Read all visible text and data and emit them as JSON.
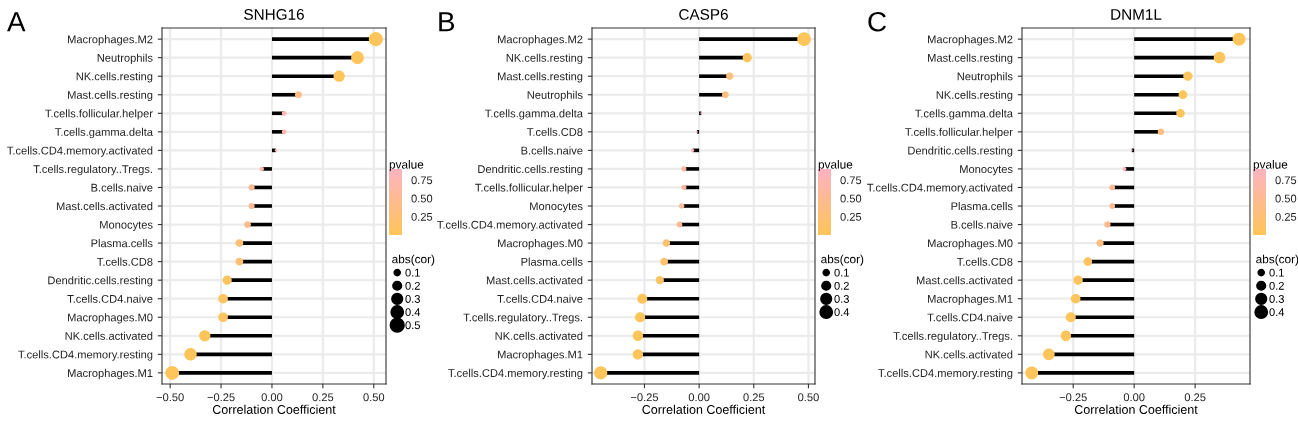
{
  "chart_data": [
    {
      "type": "lollipop",
      "title": "SNHG16",
      "xlabel": "Correlation Coefficient",
      "orientation": "horizontal",
      "annotations": [
        "A"
      ],
      "clabel": "pvalue",
      "legend_title": "abs(cor)",
      "grid": true,
      "categories": [
        "Macrophages.M2",
        "Neutrophils",
        "NK.cells.resting",
        "Mast.cells.resting",
        "T.cells.follicular.helper",
        "T.cells.gamma.delta",
        "T.cells.CD4.memory.activated",
        "T.cells.regulatory..Tregs.",
        "B.cells.naive",
        "Mast.cells.activated",
        "Monocytes",
        "Plasma.cells",
        "T.cells.CD8",
        "Dendritic.cells.resting",
        "T.cells.CD4.naive",
        "Macrophages.M0",
        "NK.cells.activated",
        "T.cells.CD4.memory.resting",
        "Macrophages.M1"
      ],
      "values": [
        0.51,
        0.42,
        0.33,
        0.13,
        0.06,
        0.06,
        0.02,
        -0.05,
        -0.1,
        -0.1,
        -0.12,
        -0.16,
        -0.16,
        -0.22,
        -0.24,
        -0.24,
        -0.33,
        -0.4,
        -0.49
      ],
      "sizes": [
        0.51,
        0.42,
        0.33,
        0.13,
        0.06,
        0.06,
        0.02,
        0.05,
        0.1,
        0.1,
        0.12,
        0.16,
        0.16,
        0.22,
        0.24,
        0.24,
        0.33,
        0.4,
        0.49
      ],
      "cvalues": [
        0.0,
        0.0,
        0.0,
        0.4,
        0.7,
        0.7,
        0.9,
        0.7,
        0.5,
        0.5,
        0.4,
        0.25,
        0.25,
        0.05,
        0.05,
        0.05,
        0.0,
        0.0,
        0.0
      ],
      "colors": [
        "#fdc55a",
        "#fdc55a",
        "#fdc55a",
        "#febd88",
        "#feb7aa",
        "#feb7aa",
        "#ffb3c1",
        "#feb7aa",
        "#febb93",
        "#febb93",
        "#febd88",
        "#fdc077",
        "#fdc077",
        "#fdc460",
        "#fdc460",
        "#fdc460",
        "#fdc55a",
        "#fdc55a",
        "#fdc55a"
      ],
      "xlim": [
        -0.54,
        0.56
      ],
      "xticks": [
        {
          "value": -0.5,
          "label": "−0.50"
        },
        {
          "value": -0.25,
          "label": "−0.25"
        },
        {
          "value": 0,
          "label": "0.00"
        },
        {
          "value": 0.25,
          "label": "0.25"
        },
        {
          "value": 0.5,
          "label": "0.50"
        }
      ],
      "clim": [
        0,
        0.9
      ],
      "cticks": [
        {
          "value": 0.25,
          "label": "0.25"
        },
        {
          "value": 0.5,
          "label": "0.50"
        },
        {
          "value": 0.75,
          "label": "0.75"
        }
      ],
      "size_legend": [
        0.1,
        0.2,
        0.3,
        0.4,
        0.5
      ]
    },
    {
      "type": "lollipop",
      "title": "CASP6",
      "xlabel": "Correlation Coefficient",
      "orientation": "horizontal",
      "annotations": [
        "B"
      ],
      "clabel": "pvalue",
      "legend_title": "abs(cor)",
      "grid": true,
      "categories": [
        "Macrophages.M2",
        "NK.cells.resting",
        "Mast.cells.resting",
        "Neutrophils",
        "T.cells.gamma.delta",
        "T.cells.CD8",
        "B.cells.naive",
        "Dendritic.cells.resting",
        "T.cells.follicular.helper",
        "Monocytes",
        "T.cells.CD4.memory.activated",
        "Macrophages.M0",
        "Plasma.cells",
        "Mast.cells.activated",
        "T.cells.CD4.naive",
        "T.cells.regulatory..Tregs.",
        "NK.cells.activated",
        "Macrophages.M1",
        "T.cells.CD4.memory.resting"
      ],
      "values": [
        0.48,
        0.22,
        0.14,
        0.12,
        0.01,
        -0.01,
        -0.03,
        -0.07,
        -0.07,
        -0.08,
        -0.09,
        -0.15,
        -0.16,
        -0.18,
        -0.26,
        -0.27,
        -0.28,
        -0.28,
        -0.45
      ],
      "sizes": [
        0.48,
        0.22,
        0.14,
        0.12,
        0.01,
        0.01,
        0.03,
        0.07,
        0.07,
        0.08,
        0.09,
        0.15,
        0.16,
        0.18,
        0.26,
        0.27,
        0.28,
        0.28,
        0.45
      ],
      "cvalues": [
        0.0,
        0.05,
        0.3,
        0.35,
        0.9,
        0.9,
        0.8,
        0.6,
        0.6,
        0.55,
        0.5,
        0.2,
        0.15,
        0.1,
        0.0,
        0.0,
        0.0,
        0.0,
        0.0
      ],
      "colors": [
        "#fdc55a",
        "#fdc460",
        "#fdbf7c",
        "#febe82",
        "#ffb3c1",
        "#ffb3c1",
        "#ffb5b5",
        "#feb99e",
        "#feb99e",
        "#feba99",
        "#febb93",
        "#fdc171",
        "#fdc26b",
        "#fdc365",
        "#fdc55a",
        "#fdc55a",
        "#fdc55a",
        "#fdc55a",
        "#fdc55a"
      ],
      "xlim": [
        -0.49,
        0.53
      ],
      "xticks": [
        {
          "value": -0.25,
          "label": "−0.25"
        },
        {
          "value": 0,
          "label": "0.00"
        },
        {
          "value": 0.25,
          "label": "0.25"
        },
        {
          "value": 0.5,
          "label": "0.50"
        }
      ],
      "clim": [
        0,
        0.9
      ],
      "cticks": [
        {
          "value": 0.25,
          "label": "0.25"
        },
        {
          "value": 0.5,
          "label": "0.50"
        },
        {
          "value": 0.75,
          "label": "0.75"
        }
      ],
      "size_legend": [
        0.1,
        0.2,
        0.3,
        0.4
      ]
    },
    {
      "type": "lollipop",
      "title": "DNM1L",
      "xlabel": "Correlation Coefficient",
      "orientation": "horizontal",
      "annotations": [
        "C"
      ],
      "clabel": "pvalue",
      "legend_title": "abs(cor)",
      "grid": true,
      "categories": [
        "Macrophages.M2",
        "Mast.cells.resting",
        "Neutrophils",
        "NK.cells.resting",
        "T.cells.gamma.delta",
        "T.cells.follicular.helper",
        "Dendritic.cells.resting",
        "Monocytes",
        "T.cells.CD4.memory.activated",
        "Plasma.cells",
        "B.cells.naive",
        "Macrophages.M0",
        "T.cells.CD8",
        "Mast.cells.activated",
        "Macrophages.M1",
        "T.cells.CD4.naive",
        "T.cells.regulatory..Tregs.",
        "NK.cells.activated",
        "T.cells.CD4.memory.resting"
      ],
      "values": [
        0.43,
        0.35,
        0.22,
        0.2,
        0.19,
        0.11,
        -0.01,
        -0.04,
        -0.09,
        -0.09,
        -0.11,
        -0.14,
        -0.19,
        -0.23,
        -0.24,
        -0.26,
        -0.28,
        -0.35,
        -0.42
      ],
      "sizes": [
        0.43,
        0.35,
        0.22,
        0.2,
        0.19,
        0.11,
        0.01,
        0.04,
        0.09,
        0.09,
        0.11,
        0.14,
        0.19,
        0.23,
        0.24,
        0.26,
        0.28,
        0.35,
        0.42
      ],
      "cvalues": [
        0.0,
        0.0,
        0.02,
        0.03,
        0.03,
        0.35,
        0.9,
        0.8,
        0.5,
        0.5,
        0.45,
        0.35,
        0.05,
        0.02,
        0.02,
        0.01,
        0.0,
        0.0,
        0.0
      ],
      "colors": [
        "#fdc55a",
        "#fdc55a",
        "#fdc55c",
        "#fdc55d",
        "#fdc55d",
        "#febe82",
        "#ffb3c1",
        "#ffb5b5",
        "#febb93",
        "#febb93",
        "#febc8d",
        "#febe82",
        "#fdc460",
        "#fdc55c",
        "#fdc55c",
        "#fdc55b",
        "#fdc55a",
        "#fdc55a",
        "#fdc55a"
      ],
      "xlim": [
        -0.46,
        0.475
      ],
      "xticks": [
        {
          "value": -0.25,
          "label": "−0.25"
        },
        {
          "value": 0,
          "label": "0.00"
        },
        {
          "value": 0.25,
          "label": "0.25"
        }
      ],
      "clim": [
        0,
        0.9
      ],
      "cticks": [
        {
          "value": 0.25,
          "label": "0.25"
        },
        {
          "value": 0.5,
          "label": "0.50"
        },
        {
          "value": 0.75,
          "label": "0.75"
        }
      ],
      "size_legend": [
        0.1,
        0.2,
        0.3,
        0.4
      ]
    }
  ]
}
